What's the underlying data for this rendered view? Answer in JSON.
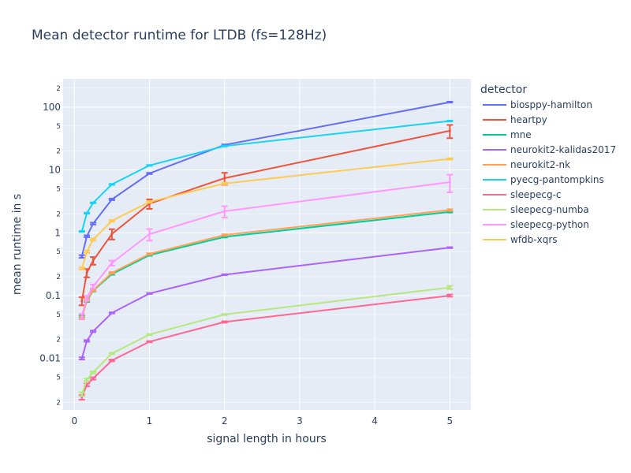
{
  "chart_data": {
    "type": "line",
    "title": "Mean detector runtime for LTDB (fs=128Hz)",
    "xlabel": "signal length in hours",
    "ylabel": "mean runtime in s",
    "xlim": [
      -0.15,
      5.28
    ],
    "ylim_log10": [
      -2.82,
      2.45
    ],
    "yscale": "log",
    "grid": true,
    "legend_title": "detector",
    "legend_placement": "right",
    "x": [
      0.1,
      0.166,
      0.25,
      0.5,
      1,
      2,
      5
    ],
    "x_ticks": [
      0,
      1,
      2,
      3,
      4,
      5
    ],
    "y_major_ticks": [
      {
        "value": 0.01,
        "label": "0.01"
      },
      {
        "value": 0.1,
        "label": "0.1"
      },
      {
        "value": 1,
        "label": "1"
      },
      {
        "value": 10,
        "label": "10"
      },
      {
        "value": 100,
        "label": "100"
      }
    ],
    "y_minor_ticks": [
      {
        "value": 0.002,
        "label": "2"
      },
      {
        "value": 0.005,
        "label": "5"
      },
      {
        "value": 0.02,
        "label": "2"
      },
      {
        "value": 0.05,
        "label": "5"
      },
      {
        "value": 0.2,
        "label": "2"
      },
      {
        "value": 0.5,
        "label": "5"
      },
      {
        "value": 2,
        "label": "2"
      },
      {
        "value": 5,
        "label": "5"
      },
      {
        "value": 20,
        "label": "2"
      },
      {
        "value": 50,
        "label": "5"
      },
      {
        "value": 200,
        "label": "2"
      }
    ],
    "series": [
      {
        "name": "biosppy-hamilton",
        "color": "#636efa",
        "values": [
          0.42,
          0.88,
          1.4,
          3.4,
          8.8,
          25,
          120
        ],
        "err": [
          0.02,
          0.03,
          0.05,
          0.1,
          0.2,
          0.5,
          2
        ]
      },
      {
        "name": "heartpy",
        "color": "#ef553b",
        "values": [
          0.082,
          0.23,
          0.36,
          0.96,
          2.9,
          7.4,
          42
        ],
        "err": [
          0.012,
          0.035,
          0.05,
          0.18,
          0.5,
          1.6,
          10
        ]
      },
      {
        "name": "mne",
        "color": "#00cc96",
        "values": [
          0.046,
          0.082,
          0.12,
          0.22,
          0.44,
          0.86,
          2.15
        ],
        "err": [
          0.002,
          0.003,
          0.004,
          0.006,
          0.01,
          0.02,
          0.05
        ]
      },
      {
        "name": "neurokit2-kalidas2017",
        "color": "#ab63fa",
        "values": [
          0.01,
          0.019,
          0.027,
          0.053,
          0.108,
          0.215,
          0.58
        ],
        "err": [
          0.0004,
          0.0006,
          0.0008,
          0.001,
          0.002,
          0.004,
          0.01
        ]
      },
      {
        "name": "neurokit2-nk",
        "color": "#ffa15a",
        "values": [
          0.044,
          0.085,
          0.122,
          0.23,
          0.46,
          0.92,
          2.3
        ],
        "err": [
          0.002,
          0.003,
          0.004,
          0.007,
          0.012,
          0.025,
          0.07
        ]
      },
      {
        "name": "pyecg-pantompkins",
        "color": "#19d3f3",
        "values": [
          1.05,
          2.05,
          3.0,
          5.9,
          11.8,
          24,
          60
        ],
        "err": [
          0.02,
          0.04,
          0.05,
          0.1,
          0.2,
          0.4,
          1
        ]
      },
      {
        "name": "sleepecg-c",
        "color": "#ff6692",
        "values": [
          0.0024,
          0.0038,
          0.0048,
          0.0093,
          0.0185,
          0.038,
          0.1
        ],
        "err": [
          0.0002,
          0.0002,
          0.0002,
          0.0003,
          0.0004,
          0.001,
          0.004
        ]
      },
      {
        "name": "sleepecg-numba",
        "color": "#b6e880",
        "values": [
          0.0027,
          0.0046,
          0.006,
          0.012,
          0.024,
          0.05,
          0.135
        ],
        "err": [
          0.0002,
          0.0002,
          0.0002,
          0.0003,
          0.0005,
          0.001,
          0.008
        ]
      },
      {
        "name": "sleepecg-python",
        "color": "#ff97ff",
        "values": [
          0.047,
          0.092,
          0.14,
          0.33,
          0.95,
          2.2,
          6.4
        ],
        "err": [
          0.004,
          0.007,
          0.01,
          0.03,
          0.2,
          0.45,
          2.0
        ]
      },
      {
        "name": "wfdb-xqrs",
        "color": "#fecb52",
        "values": [
          0.27,
          0.5,
          0.78,
          1.55,
          3.1,
          6.1,
          15
        ],
        "err": [
          0.01,
          0.02,
          0.03,
          0.05,
          0.1,
          0.2,
          0.4
        ]
      }
    ]
  }
}
